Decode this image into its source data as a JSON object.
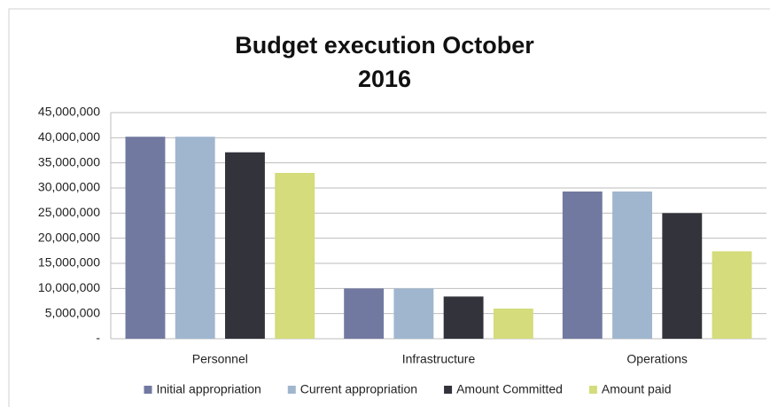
{
  "chart_data": {
    "type": "bar",
    "title": "Budget execution October 2016",
    "categories": [
      "Personnel",
      "Infrastructure",
      "Operations"
    ],
    "series": [
      {
        "name": "Initial appropriation",
        "color": "#7279a1",
        "values": [
          40200000,
          10000000,
          29300000
        ]
      },
      {
        "name": "Current appropriation",
        "color": "#a0b6cf",
        "values": [
          40200000,
          10000000,
          29300000
        ]
      },
      {
        "name": "Amount Committed",
        "color": "#33333b",
        "values": [
          37100000,
          8400000,
          25000000
        ]
      },
      {
        "name": "Amount paid",
        "color": "#d4dc7b",
        "values": [
          33000000,
          6000000,
          17400000
        ]
      }
    ],
    "ylim": [
      0,
      45000000
    ],
    "yticks": [
      {
        "value": 0,
        "label": "-"
      },
      {
        "value": 5000000,
        "label": "5,000,000"
      },
      {
        "value": 10000000,
        "label": "10,000,000"
      },
      {
        "value": 15000000,
        "label": "15,000,000"
      },
      {
        "value": 20000000,
        "label": "20,000,000"
      },
      {
        "value": 25000000,
        "label": "25,000,000"
      },
      {
        "value": 30000000,
        "label": "30,000,000"
      },
      {
        "value": 35000000,
        "label": "35,000,000"
      },
      {
        "value": 40000000,
        "label": "40,000,000"
      },
      {
        "value": 45000000,
        "label": "45,000,000"
      }
    ],
    "grid": true,
    "legend": "bottom"
  }
}
